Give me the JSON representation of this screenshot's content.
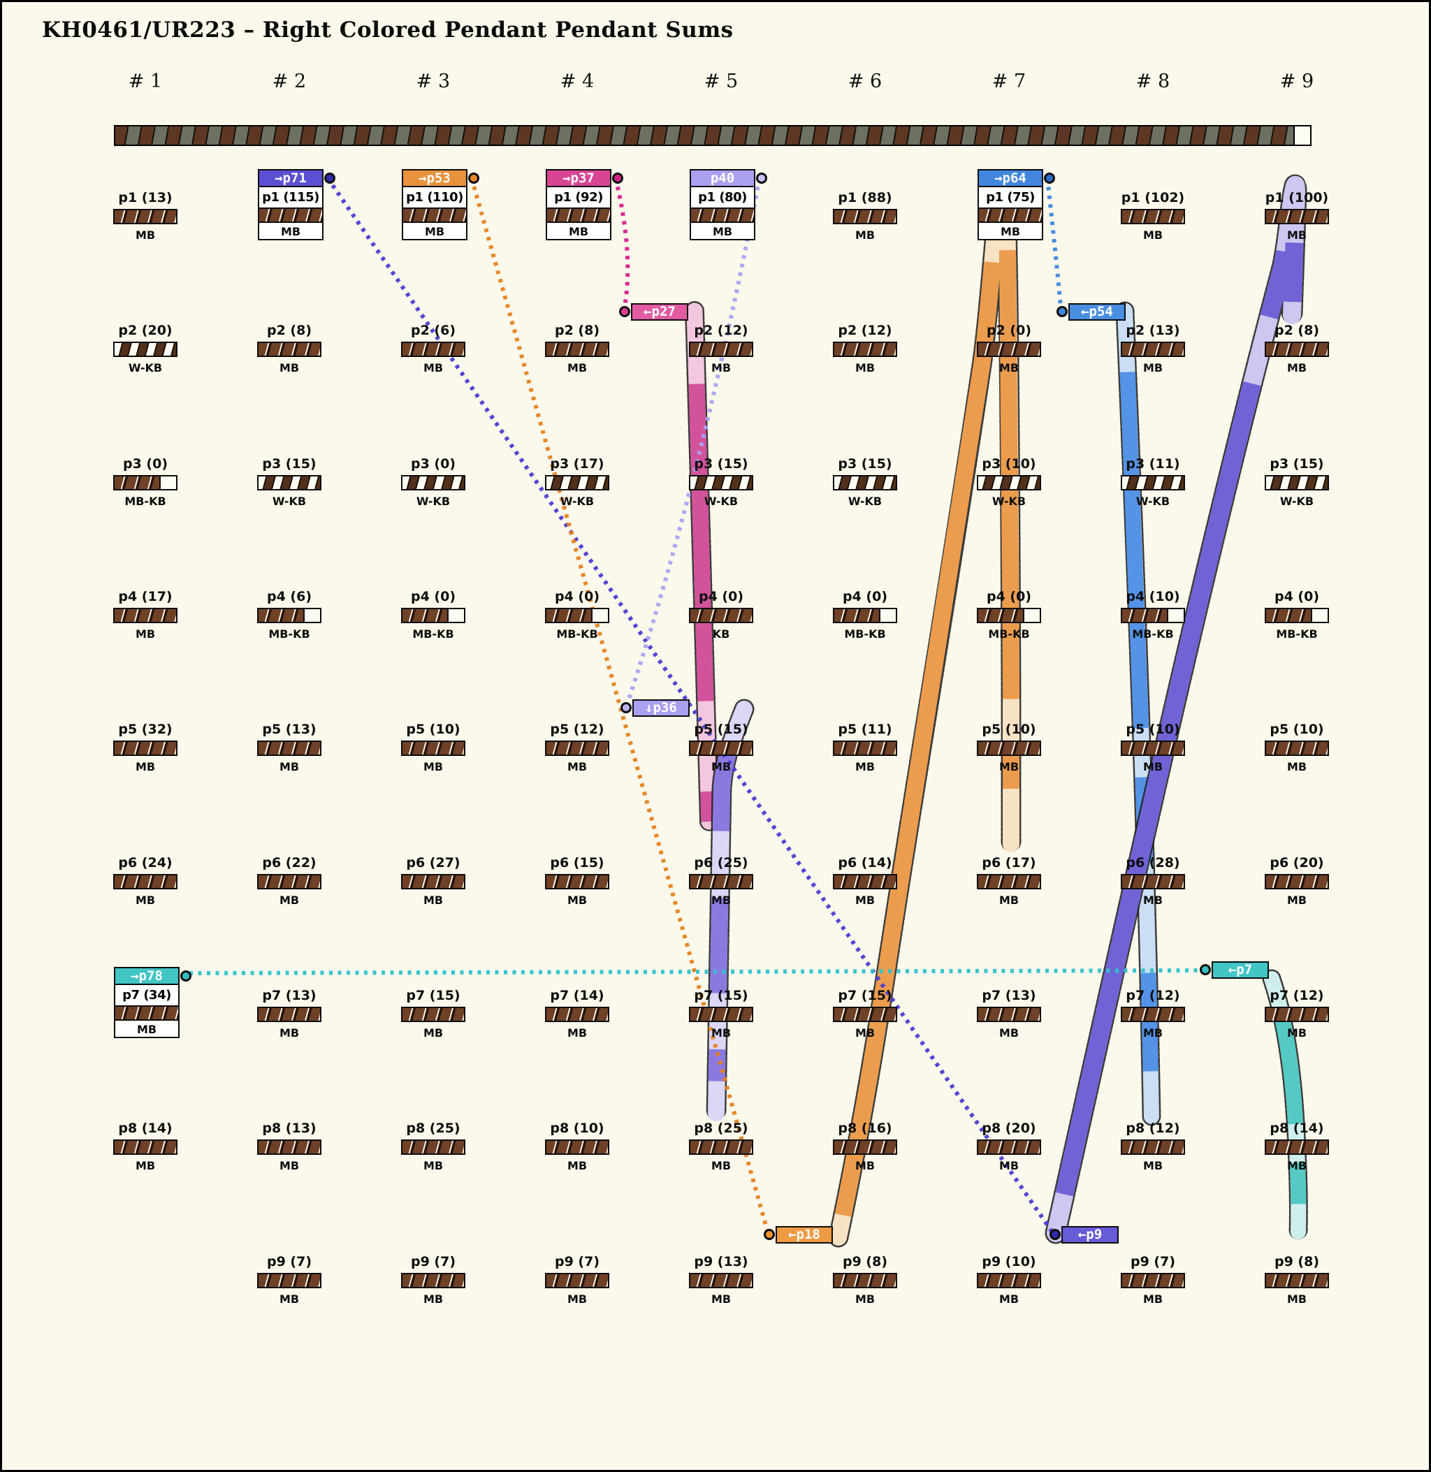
{
  "title": "KH0461/UR223 – Right Colored Pendant Pendant Sums",
  "column_headers": [
    "# 1",
    "# 2",
    "# 3",
    "# 4",
    "# 5",
    "# 6",
    "# 7",
    "# 8",
    "# 9"
  ],
  "grid": {
    "columns": [
      {
        "header": "# 1",
        "cells": [
          {
            "label": "p1 (13)",
            "sub": "MB",
            "fill": "mb"
          },
          {
            "label": "p2 (20)",
            "sub": "W-KB",
            "fill": "wkb"
          },
          {
            "label": "p3 (0)",
            "sub": "MB-KB",
            "fill": "mbkb"
          },
          {
            "label": "p4 (17)",
            "sub": "MB",
            "fill": "mb"
          },
          {
            "label": "p5 (32)",
            "sub": "MB",
            "fill": "mb"
          },
          {
            "label": "p6 (24)",
            "sub": "MB",
            "fill": "mb"
          },
          {
            "label": "p7 (34)",
            "sub": "MB",
            "fill": "mb",
            "tag": "p78"
          },
          {
            "label": "p8 (14)",
            "sub": "MB",
            "fill": "mb"
          },
          null
        ]
      },
      {
        "header": "# 2",
        "cells": [
          {
            "label": "p1 (115)",
            "sub": "MB",
            "fill": "mb",
            "tag": "p71"
          },
          {
            "label": "p2 (8)",
            "sub": "MB",
            "fill": "mb"
          },
          {
            "label": "p3 (15)",
            "sub": "W-KB",
            "fill": "wkb"
          },
          {
            "label": "p4 (6)",
            "sub": "MB-KB",
            "fill": "mbkb"
          },
          {
            "label": "p5 (13)",
            "sub": "MB",
            "fill": "mb"
          },
          {
            "label": "p6 (22)",
            "sub": "MB",
            "fill": "mb"
          },
          {
            "label": "p7 (13)",
            "sub": "MB",
            "fill": "mb"
          },
          {
            "label": "p8 (13)",
            "sub": "MB",
            "fill": "mb"
          },
          {
            "label": "p9 (7)",
            "sub": "MB",
            "fill": "mb"
          }
        ]
      },
      {
        "header": "# 3",
        "cells": [
          {
            "label": "p1 (110)",
            "sub": "MB",
            "fill": "mb",
            "tag": "p53"
          },
          {
            "label": "p2 (6)",
            "sub": "MB",
            "fill": "mb"
          },
          {
            "label": "p3 (0)",
            "sub": "W-KB",
            "fill": "wkb"
          },
          {
            "label": "p4 (0)",
            "sub": "MB-KB",
            "fill": "mbkb"
          },
          {
            "label": "p5 (10)",
            "sub": "MB",
            "fill": "mb"
          },
          {
            "label": "p6 (27)",
            "sub": "MB",
            "fill": "mb"
          },
          {
            "label": "p7 (15)",
            "sub": "MB",
            "fill": "mb"
          },
          {
            "label": "p8 (25)",
            "sub": "MB",
            "fill": "mb"
          },
          {
            "label": "p9 (7)",
            "sub": "MB",
            "fill": "mb"
          }
        ]
      },
      {
        "header": "# 4",
        "cells": [
          {
            "label": "p1 (92)",
            "sub": "MB",
            "fill": "mb",
            "tag": "p37"
          },
          {
            "label": "p2 (8)",
            "sub": "MB",
            "fill": "mb"
          },
          {
            "label": "p3 (17)",
            "sub": "W-KB",
            "fill": "wkb"
          },
          {
            "label": "p4 (0)",
            "sub": "MB-KB",
            "fill": "mbkb"
          },
          {
            "label": "p5 (12)",
            "sub": "MB",
            "fill": "mb"
          },
          {
            "label": "p6 (15)",
            "sub": "MB",
            "fill": "mb"
          },
          {
            "label": "p7 (14)",
            "sub": "MB",
            "fill": "mb"
          },
          {
            "label": "p8 (10)",
            "sub": "MB",
            "fill": "mb"
          },
          {
            "label": "p9 (7)",
            "sub": "MB",
            "fill": "mb"
          }
        ]
      },
      {
        "header": "# 5",
        "cells": [
          {
            "label": "p1 (80)",
            "sub": "MB",
            "fill": "mb",
            "tag": "p40"
          },
          {
            "label": "p2 (12)",
            "sub": "MB",
            "fill": "mb"
          },
          {
            "label": "p3 (15)",
            "sub": "W-KB",
            "fill": "wkb"
          },
          {
            "label": "p4 (0)",
            "sub": "KB",
            "fill": "kb"
          },
          {
            "label": "p5 (15)",
            "sub": "MB",
            "fill": "mb"
          },
          {
            "label": "p6 (25)",
            "sub": "MB",
            "fill": "mb"
          },
          {
            "label": "p7 (15)",
            "sub": "MB",
            "fill": "mb"
          },
          {
            "label": "p8 (25)",
            "sub": "MB",
            "fill": "mb"
          },
          {
            "label": "p9 (13)",
            "sub": "MB",
            "fill": "mb"
          }
        ]
      },
      {
        "header": "# 6",
        "cells": [
          {
            "label": "p1 (88)",
            "sub": "MB",
            "fill": "mb"
          },
          {
            "label": "p2 (12)",
            "sub": "MB",
            "fill": "mb"
          },
          {
            "label": "p3 (15)",
            "sub": "W-KB",
            "fill": "wkb"
          },
          {
            "label": "p4 (0)",
            "sub": "MB-KB",
            "fill": "mbkb"
          },
          {
            "label": "p5 (11)",
            "sub": "MB",
            "fill": "mb"
          },
          {
            "label": "p6 (14)",
            "sub": "MB",
            "fill": "mb"
          },
          {
            "label": "p7 (15)",
            "sub": "MB",
            "fill": "mb"
          },
          {
            "label": "p8 (16)",
            "sub": "MB",
            "fill": "mb"
          },
          {
            "label": "p9 (8)",
            "sub": "MB",
            "fill": "mb"
          }
        ]
      },
      {
        "header": "# 7",
        "cells": [
          {
            "label": "p1 (75)",
            "sub": "MB",
            "fill": "mb",
            "tag": "p64"
          },
          {
            "label": "p2 (0)",
            "sub": "MB",
            "fill": "mb"
          },
          {
            "label": "p3 (10)",
            "sub": "W-KB",
            "fill": "wkb"
          },
          {
            "label": "p4 (0)",
            "sub": "MB-KB",
            "fill": "mbkb"
          },
          {
            "label": "p5 (10)",
            "sub": "MB",
            "fill": "mb"
          },
          {
            "label": "p6 (17)",
            "sub": "MB",
            "fill": "mb"
          },
          {
            "label": "p7 (13)",
            "sub": "MB",
            "fill": "mb"
          },
          {
            "label": "p8 (20)",
            "sub": "MB",
            "fill": "mb"
          },
          {
            "label": "p9 (10)",
            "sub": "MB",
            "fill": "mb"
          }
        ]
      },
      {
        "header": "# 8",
        "cells": [
          {
            "label": "p1 (102)",
            "sub": "MB",
            "fill": "mb"
          },
          {
            "label": "p2 (13)",
            "sub": "MB",
            "fill": "mb"
          },
          {
            "label": "p3 (11)",
            "sub": "W-KB",
            "fill": "wkb"
          },
          {
            "label": "p4 (10)",
            "sub": "MB-KB",
            "fill": "mbkb"
          },
          {
            "label": "p5 (10)",
            "sub": "MB",
            "fill": "mb"
          },
          {
            "label": "p6 (28)",
            "sub": "MB",
            "fill": "mb"
          },
          {
            "label": "p7 (12)",
            "sub": "MB",
            "fill": "mb"
          },
          {
            "label": "p8 (12)",
            "sub": "MB",
            "fill": "mb"
          },
          {
            "label": "p9 (7)",
            "sub": "MB",
            "fill": "mb"
          }
        ]
      },
      {
        "header": "# 9",
        "cells": [
          {
            "label": "p1 (100)",
            "sub": "MB",
            "fill": "mb"
          },
          {
            "label": "p2 (8)",
            "sub": "MB",
            "fill": "mb"
          },
          {
            "label": "p3 (15)",
            "sub": "W-KB",
            "fill": "wkb"
          },
          {
            "label": "p4 (0)",
            "sub": "MB-KB",
            "fill": "mbkb"
          },
          {
            "label": "p5 (10)",
            "sub": "MB",
            "fill": "mb"
          },
          {
            "label": "p6 (20)",
            "sub": "MB",
            "fill": "mb"
          },
          {
            "label": "p7 (12)",
            "sub": "MB",
            "fill": "mb"
          },
          {
            "label": "p8 (14)",
            "sub": "MB",
            "fill": "mb"
          },
          {
            "label": "p9 (8)",
            "sub": "MB",
            "fill": "mb"
          }
        ]
      }
    ]
  },
  "tags": {
    "p71": {
      "text": "→p71",
      "color": "#5b50d3",
      "dot": "#2e2ba8"
    },
    "p53": {
      "text": "→p53",
      "color": "#e8923c",
      "dot": "#e8872a"
    },
    "p37": {
      "text": "→p37",
      "color": "#d84595",
      "dot": "#d62088"
    },
    "p40": {
      "text": "p40",
      "color": "#a9a0f0",
      "dot": "#c9c3f6"
    },
    "p64": {
      "text": "→p64",
      "color": "#4286dd",
      "dot": "#2a6cc8"
    },
    "p78": {
      "text": "→p78",
      "color": "#42c5c5",
      "dot": "#35c1c1"
    },
    "p27": {
      "text": "←p27",
      "color": "#e25ba3",
      "dot": "#e03b98"
    },
    "p54": {
      "text": "←p54",
      "color": "#4a8ee0",
      "dot": "#3f86dd"
    },
    "p36": {
      "text": "↓p36",
      "color": "#a9a0f0",
      "dot": "#b9b2f3"
    },
    "p7": {
      "text": "←p7",
      "color": "#42c5c5",
      "dot": "#35c1c1"
    },
    "p18": {
      "text": "←p18",
      "color": "#ef9b43",
      "dot": "#ef9330"
    },
    "p9": {
      "text": "←p9",
      "color": "#675bd8",
      "dot": "#2e2ba8"
    }
  },
  "connectors": [
    {
      "id": "c-p71-p9",
      "from": "p71",
      "to": "p9",
      "color": "#4a3cd2"
    },
    {
      "id": "c-p53-p18",
      "from": "p53",
      "to": "p18",
      "color": "#e5821c"
    },
    {
      "id": "c-p37-p27",
      "from": "p37",
      "to": "p27",
      "color": "#d6208c"
    },
    {
      "id": "c-p40-p36",
      "from": "p40",
      "to": "p36",
      "color": "#a9a2f2"
    },
    {
      "id": "c-p64-p54",
      "from": "p64",
      "to": "p54",
      "color": "#3f86dd"
    },
    {
      "id": "c-p78-p7",
      "from": "p78",
      "to": "p7",
      "color": "#2ec3c9"
    }
  ],
  "ribbons": [
    {
      "id": "r-p27",
      "desc": "pink ribbon from ←p27 down column 5",
      "color": "#d2539c",
      "light": "#f3c7de"
    },
    {
      "id": "r-p36",
      "desc": "purple ribbon from ↓p36 down column 5",
      "color": "#8b79e0",
      "light": "#dcd6f7"
    },
    {
      "id": "r-p18",
      "desc": "orange ribbon ←p18 up to col7 p1 and back down",
      "color": "#eb9c4d",
      "light": "#f8e2c4"
    },
    {
      "id": "r-p54",
      "desc": "blue ribbon from ←p54 down column 8",
      "color": "#5493e6",
      "light": "#cbdef5"
    },
    {
      "id": "r-p9",
      "desc": "violet ribbon col9 p1 turn down to ←p9",
      "color": "#7063d6",
      "light": "#cdc7f1"
    },
    {
      "id": "r-p7",
      "desc": "teal ribbon from ←p7 down column 9",
      "color": "#55cac5",
      "light": "#cfefed"
    }
  ],
  "palette": {
    "background": "#fbf8ec",
    "frame": "#000000",
    "bar_brown": "#6f4126",
    "bar_dark": "#26130a",
    "bar_white": "#fdfcf3",
    "bar_olive": "#6c7161"
  }
}
